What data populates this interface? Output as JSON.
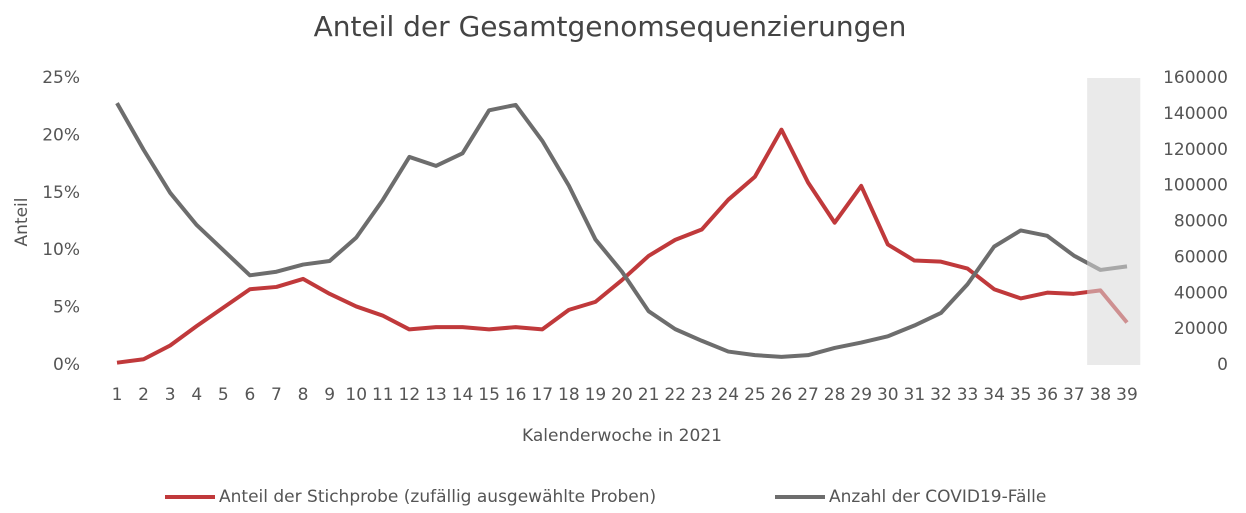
{
  "chart_data": {
    "type": "line",
    "title": "Anteil der Gesamtgenomsequenzierungen",
    "x_label": "Kalenderwoche in 2021",
    "y_label": "Anteil",
    "categories": [
      1,
      2,
      3,
      4,
      5,
      6,
      7,
      8,
      9,
      10,
      11,
      12,
      13,
      14,
      15,
      16,
      17,
      18,
      19,
      20,
      21,
      22,
      23,
      24,
      25,
      26,
      27,
      28,
      29,
      30,
      31,
      32,
      33,
      34,
      35,
      36,
      37,
      38,
      39
    ],
    "series": [
      {
        "name": "Anteil der Stichprobe (zufällig ausgewählte Proben)",
        "color": "#c0393b",
        "axis": "y",
        "values": [
          0.2,
          0.5,
          1.7,
          3.4,
          5.0,
          6.6,
          6.8,
          7.5,
          6.2,
          5.1,
          4.3,
          3.1,
          3.3,
          3.3,
          3.1,
          3.3,
          3.1,
          4.8,
          5.5,
          7.4,
          9.5,
          10.9,
          11.8,
          14.4,
          16.4,
          20.5,
          15.9,
          12.4,
          15.6,
          10.5,
          9.1,
          9.0,
          8.4,
          6.6,
          5.8,
          6.3,
          6.2,
          6.5,
          3.7
        ]
      },
      {
        "name": "Anzahl der COVID19-Fälle",
        "color": "#6d6d6d",
        "axis": "y2",
        "values": [
          146000,
          120000,
          96000,
          78000,
          64000,
          50000,
          52000,
          56000,
          58000,
          71000,
          92000,
          116000,
          111000,
          118000,
          142000,
          145000,
          125000,
          100000,
          70000,
          52000,
          30000,
          20000,
          13500,
          7500,
          5500,
          4500,
          5500,
          9500,
          12500,
          16000,
          22000,
          29000,
          45000,
          66000,
          75000,
          72000,
          61000,
          53000,
          55000
        ]
      }
    ],
    "ylim": [
      0,
      25
    ],
    "yticks": [
      {
        "value": 0,
        "label": "0%"
      },
      {
        "value": 5,
        "label": "5%"
      },
      {
        "value": 10,
        "label": "10%"
      },
      {
        "value": 15,
        "label": "15%"
      },
      {
        "value": 20,
        "label": "20%"
      },
      {
        "value": 25,
        "label": "25%"
      }
    ],
    "y2lim": [
      0,
      160000
    ],
    "y2ticks": [
      0,
      20000,
      40000,
      60000,
      80000,
      100000,
      120000,
      140000,
      160000
    ],
    "highlight_categories": [
      38,
      39
    ],
    "grid": false,
    "legend": "bottom"
  }
}
